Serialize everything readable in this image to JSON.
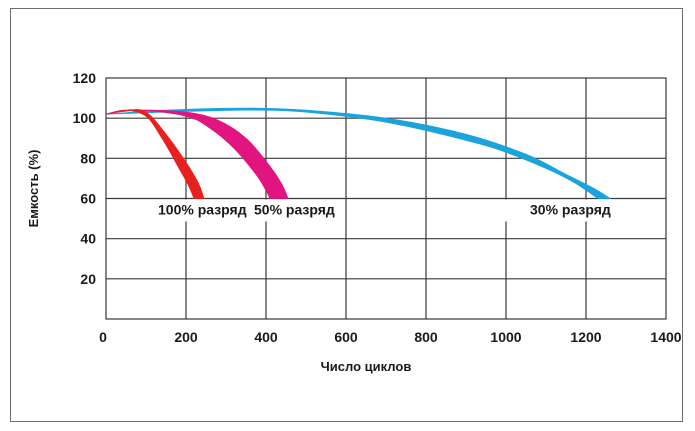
{
  "chart_data": {
    "type": "area",
    "title": "",
    "xlabel": "Число циклов",
    "ylabel": "Емкость (%)",
    "xlim": [
      0,
      1400
    ],
    "ylim": [
      0,
      120
    ],
    "x_ticks": [
      "0",
      "200",
      "400",
      "600",
      "800",
      "1000",
      "1200",
      "1400"
    ],
    "y_ticks": [
      "20",
      "40",
      "60",
      "80",
      "100",
      "120"
    ],
    "grid": true,
    "series": [
      {
        "name": "100% разряд",
        "label": "100% разряд",
        "color": "#e8201f",
        "upper": [
          [
            0,
            102
          ],
          [
            50,
            104
          ],
          [
            100,
            103
          ],
          [
            150,
            92
          ],
          [
            200,
            78
          ],
          [
            230,
            68
          ],
          [
            245,
            60
          ]
        ],
        "lower": [
          [
            0,
            102
          ],
          [
            50,
            104
          ],
          [
            100,
            101
          ],
          [
            140,
            90
          ],
          [
            180,
            76
          ],
          [
            205,
            67
          ],
          [
            220,
            60
          ]
        ]
      },
      {
        "name": "50% разряд",
        "label": "50% разряд",
        "color": "#e2147f",
        "upper": [
          [
            0,
            102
          ],
          [
            80,
            104
          ],
          [
            200,
            103
          ],
          [
            280,
            99
          ],
          [
            350,
            90
          ],
          [
            410,
            76
          ],
          [
            440,
            67
          ],
          [
            455,
            60
          ]
        ],
        "lower": [
          [
            0,
            102
          ],
          [
            80,
            104
          ],
          [
            200,
            101
          ],
          [
            260,
            95
          ],
          [
            320,
            85
          ],
          [
            375,
            72
          ],
          [
            400,
            64
          ],
          [
            410,
            60
          ]
        ]
      },
      {
        "name": "30% разряд",
        "label": "30% разряд",
        "color": "#1aa3dc",
        "upper": [
          [
            0,
            102
          ],
          [
            150,
            104
          ],
          [
            350,
            105
          ],
          [
            500,
            104
          ],
          [
            700,
            100
          ],
          [
            900,
            92
          ],
          [
            1050,
            82
          ],
          [
            1150,
            72
          ],
          [
            1220,
            65
          ],
          [
            1260,
            60
          ]
        ],
        "lower": [
          [
            0,
            102
          ],
          [
            150,
            103
          ],
          [
            350,
            104
          ],
          [
            500,
            103
          ],
          [
            700,
            98
          ],
          [
            900,
            89
          ],
          [
            1000,
            83
          ],
          [
            1100,
            75
          ],
          [
            1170,
            68
          ],
          [
            1230,
            60
          ]
        ]
      }
    ]
  }
}
